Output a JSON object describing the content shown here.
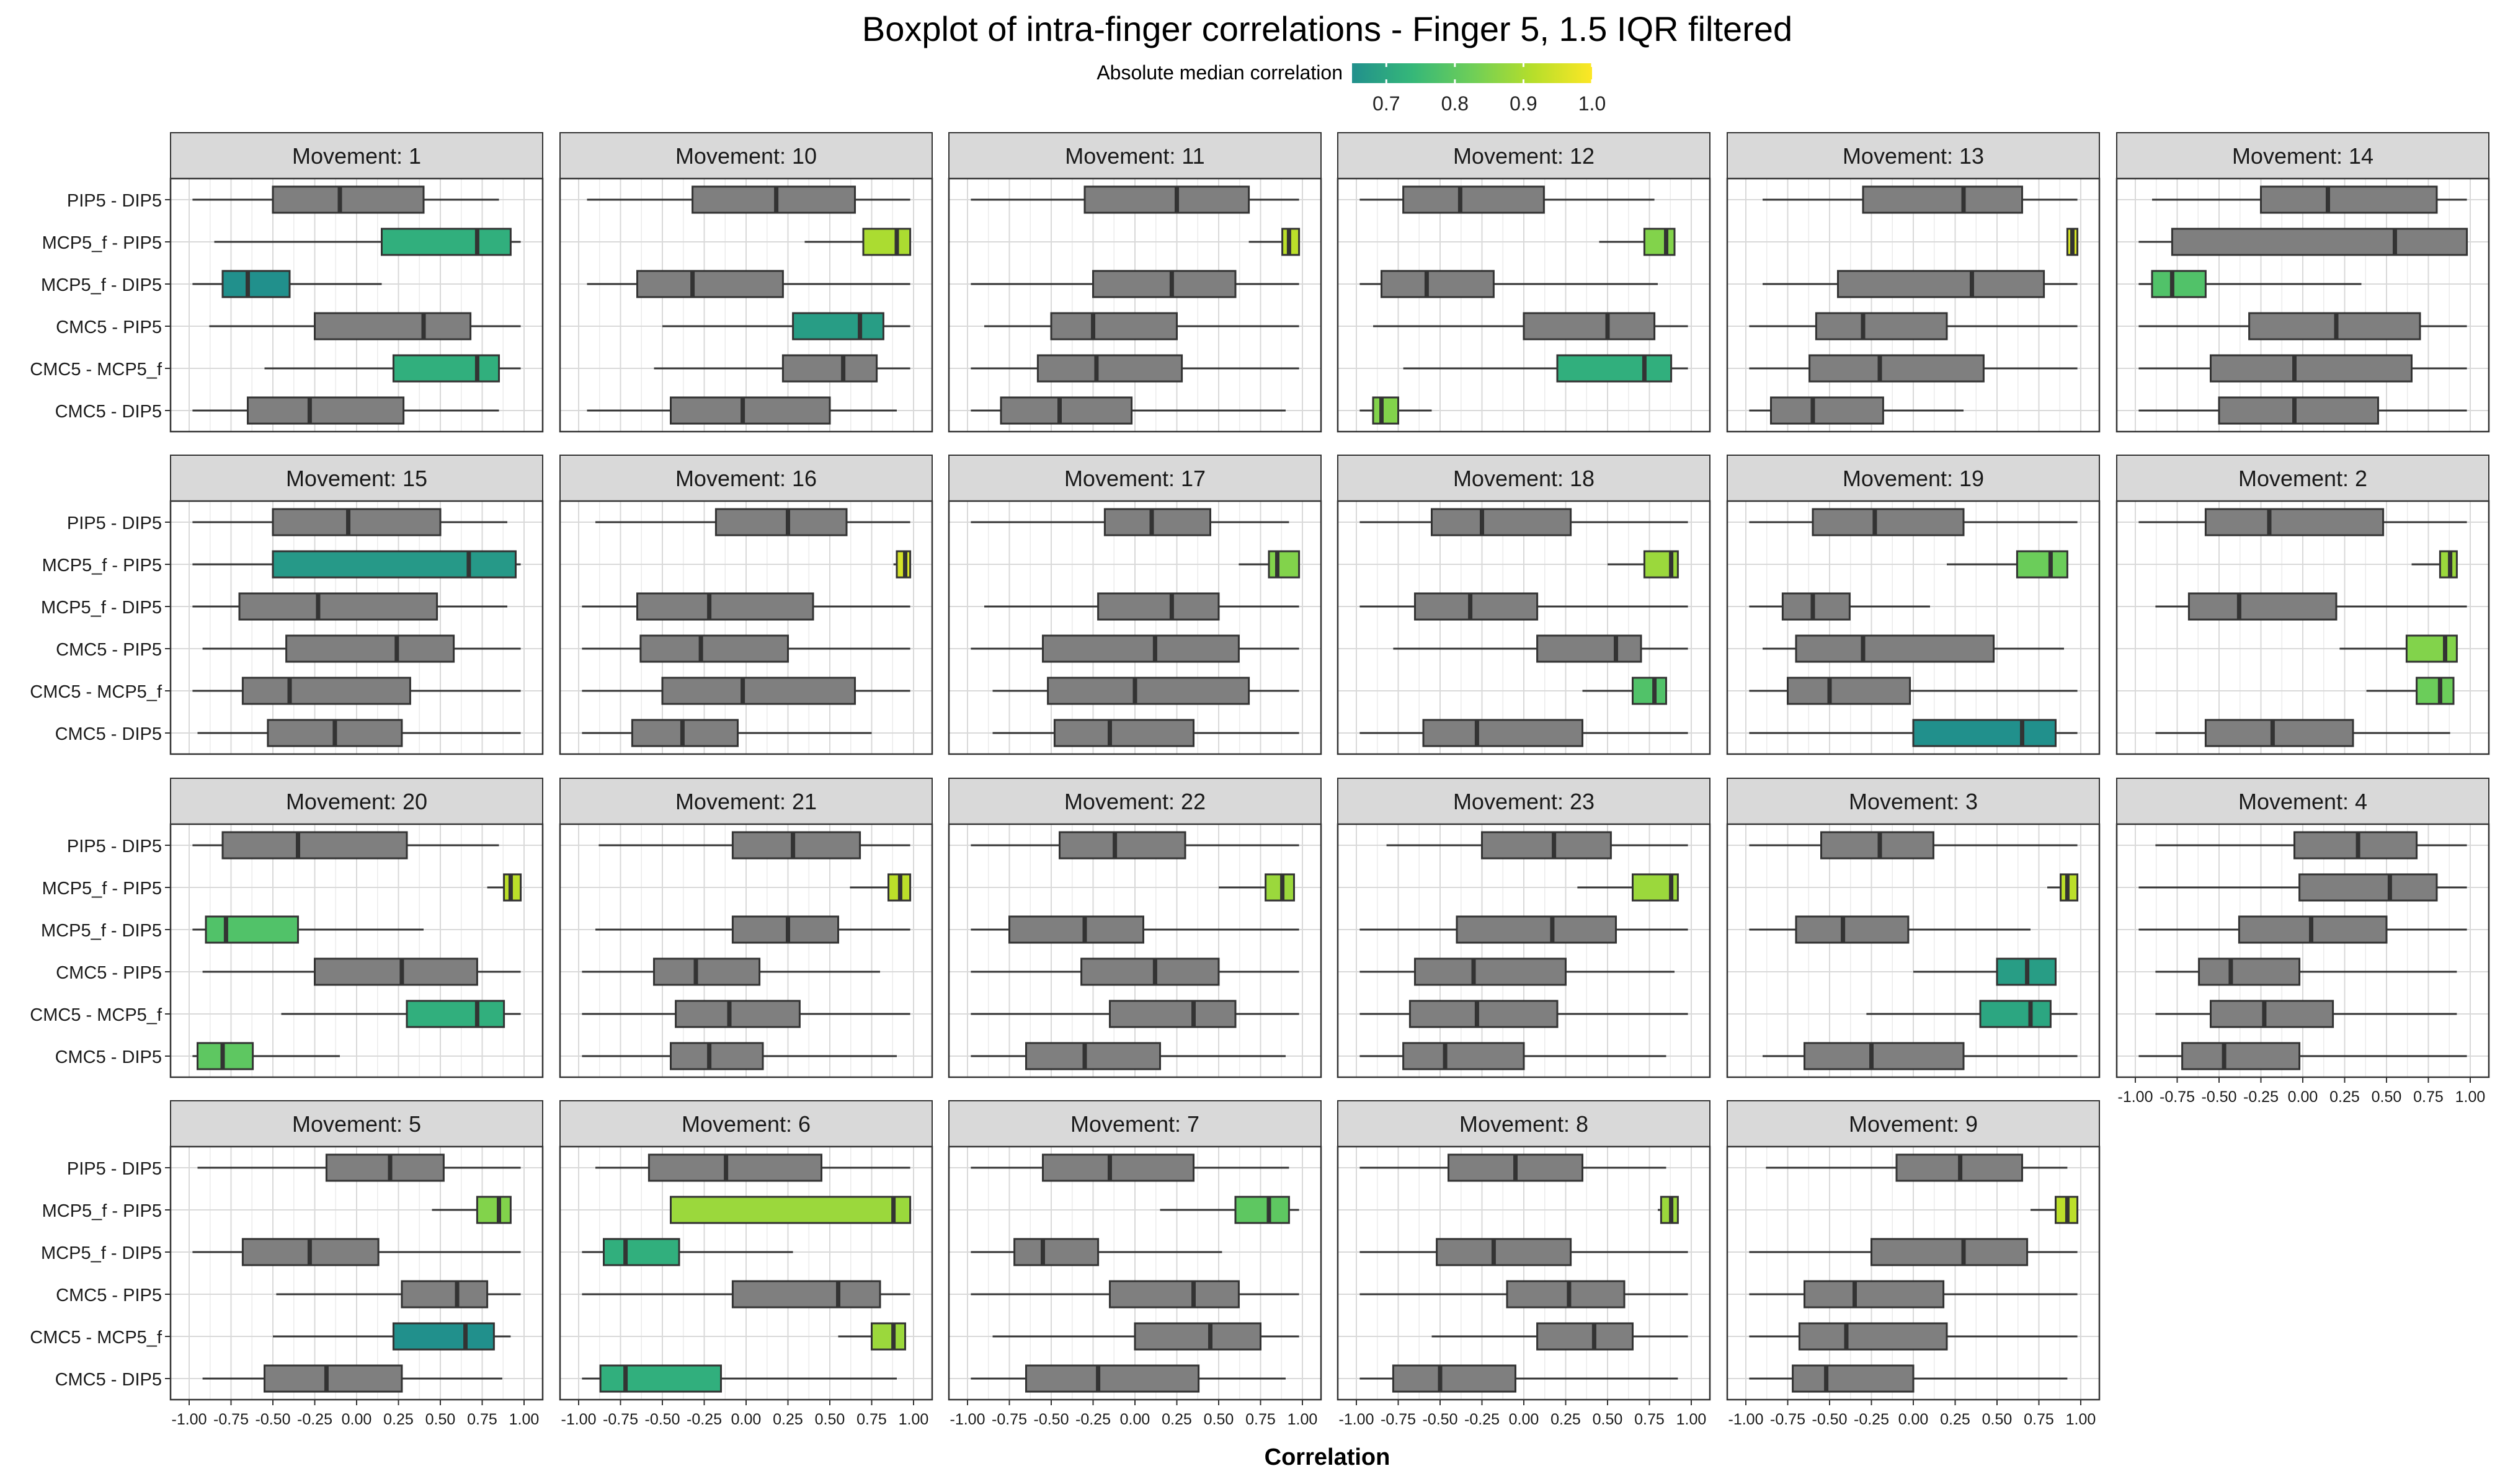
{
  "title": "Boxplot of intra-finger correlations - Finger 5, 1.5 IQR filtered",
  "legend": {
    "title": "Absolute median correlation",
    "ticks": [
      "0.7",
      "0.8",
      "0.9",
      "1.0"
    ],
    "tick_values": [
      0.7,
      0.8,
      0.9,
      1.0
    ],
    "range": [
      0.65,
      1.0
    ],
    "colors": [
      "#21908c",
      "#35b779",
      "#6ece58",
      "#b5de2b",
      "#fde725"
    ]
  },
  "colors": {
    "neutral_box": "#7f7f7f",
    "strip": "#d9d9d9",
    "grid": "#d9d9d9",
    "border": "#333333"
  },
  "chart_data": {
    "type": "boxplot",
    "orientation": "horizontal",
    "xlabel": "Correlation",
    "xlim": [
      -1.0,
      1.0
    ],
    "x_ticks": [
      -1.0,
      -0.75,
      -0.5,
      -0.25,
      0.0,
      0.25,
      0.5,
      0.75,
      1.0
    ],
    "x_tick_labels": [
      "-1.00",
      "-0.75",
      "-0.50",
      "-0.25",
      "0.00",
      "0.25",
      "0.50",
      "0.75",
      "1.00"
    ],
    "categories": [
      "PIP5 - DIP5",
      "MCP5_f - PIP5",
      "MCP5_f - DIP5",
      "CMC5 - PIP5",
      "CMC5 - MCP5_f",
      "CMC5 - DIP5"
    ],
    "box_fields": [
      "whisker_min",
      "q1",
      "median",
      "q3",
      "whisker_max"
    ],
    "colored_when_abs_median_at_least": 0.65,
    "facets": [
      {
        "label": "Movement: 1",
        "boxes": [
          [
            -0.98,
            -0.5,
            -0.1,
            0.4,
            0.85
          ],
          [
            -0.85,
            0.15,
            0.72,
            0.92,
            0.98
          ],
          [
            -0.98,
            -0.8,
            -0.65,
            -0.4,
            0.15
          ],
          [
            -0.88,
            -0.25,
            0.4,
            0.68,
            0.98
          ],
          [
            -0.55,
            0.22,
            0.72,
            0.85,
            0.98
          ],
          [
            -0.98,
            -0.65,
            -0.28,
            0.28,
            0.85
          ]
        ]
      },
      {
        "label": "Movement: 10",
        "boxes": [
          [
            -0.95,
            -0.32,
            0.18,
            0.65,
            0.98
          ],
          [
            0.35,
            0.7,
            0.9,
            0.98,
            0.98
          ],
          [
            -0.95,
            -0.65,
            -0.32,
            0.22,
            0.98
          ],
          [
            -0.5,
            0.28,
            0.68,
            0.82,
            0.98
          ],
          [
            -0.55,
            0.22,
            0.58,
            0.78,
            0.98
          ],
          [
            -0.95,
            -0.45,
            -0.02,
            0.5,
            0.9
          ]
        ]
      },
      {
        "label": "Movement: 11",
        "boxes": [
          [
            -0.98,
            -0.3,
            0.25,
            0.68,
            0.98
          ],
          [
            0.68,
            0.88,
            0.92,
            0.98,
            0.98
          ],
          [
            -0.98,
            -0.25,
            0.22,
            0.6,
            0.98
          ],
          [
            -0.9,
            -0.5,
            -0.25,
            0.25,
            0.98
          ],
          [
            -0.98,
            -0.58,
            -0.23,
            0.28,
            0.98
          ],
          [
            -0.98,
            -0.8,
            -0.45,
            -0.02,
            0.9
          ]
        ]
      },
      {
        "label": "Movement: 12",
        "boxes": [
          [
            -0.98,
            -0.72,
            -0.38,
            0.12,
            0.78
          ],
          [
            0.45,
            0.72,
            0.85,
            0.9,
            0.9
          ],
          [
            -0.98,
            -0.85,
            -0.58,
            -0.18,
            0.8
          ],
          [
            -0.9,
            0.0,
            0.5,
            0.78,
            0.98
          ],
          [
            -0.72,
            0.2,
            0.72,
            0.88,
            0.98
          ],
          [
            -0.98,
            -0.9,
            -0.85,
            -0.75,
            -0.55
          ]
        ]
      },
      {
        "label": "Movement: 13",
        "boxes": [
          [
            -0.9,
            -0.3,
            0.3,
            0.65,
            0.98
          ],
          [
            0.92,
            0.92,
            0.95,
            0.98,
            0.98
          ],
          [
            -0.9,
            -0.45,
            0.35,
            0.78,
            0.98
          ],
          [
            -0.98,
            -0.58,
            -0.3,
            0.2,
            0.98
          ],
          [
            -0.98,
            -0.62,
            -0.2,
            0.42,
            0.98
          ],
          [
            -0.98,
            -0.85,
            -0.6,
            -0.18,
            0.3
          ]
        ]
      },
      {
        "label": "Movement: 14",
        "boxes": [
          [
            -0.9,
            -0.25,
            0.15,
            0.8,
            0.98
          ],
          [
            -0.98,
            -0.78,
            0.55,
            0.98,
            0.98
          ],
          [
            -0.98,
            -0.9,
            -0.78,
            -0.58,
            0.35
          ],
          [
            -0.98,
            -0.32,
            0.2,
            0.7,
            0.98
          ],
          [
            -0.98,
            -0.55,
            -0.05,
            0.65,
            0.98
          ],
          [
            -0.98,
            -0.5,
            -0.05,
            0.45,
            0.98
          ]
        ]
      },
      {
        "label": "Movement: 15",
        "boxes": [
          [
            -0.98,
            -0.5,
            -0.05,
            0.5,
            0.9
          ],
          [
            -0.98,
            -0.5,
            0.67,
            0.95,
            0.98
          ],
          [
            -0.98,
            -0.7,
            -0.23,
            0.48,
            0.9
          ],
          [
            -0.92,
            -0.42,
            0.24,
            0.58,
            0.98
          ],
          [
            -0.98,
            -0.68,
            -0.4,
            0.32,
            0.98
          ],
          [
            -0.95,
            -0.53,
            -0.13,
            0.27,
            0.98
          ]
        ]
      },
      {
        "label": "Movement: 16",
        "boxes": [
          [
            -0.9,
            -0.18,
            0.25,
            0.6,
            0.98
          ],
          [
            0.88,
            0.9,
            0.95,
            0.98,
            0.98
          ],
          [
            -0.98,
            -0.65,
            -0.22,
            0.4,
            0.98
          ],
          [
            -0.98,
            -0.63,
            -0.27,
            0.25,
            0.98
          ],
          [
            -0.98,
            -0.5,
            -0.02,
            0.65,
            0.98
          ],
          [
            -0.98,
            -0.68,
            -0.38,
            -0.05,
            0.75
          ]
        ]
      },
      {
        "label": "Movement: 17",
        "boxes": [
          [
            -0.98,
            -0.18,
            0.1,
            0.45,
            0.92
          ],
          [
            0.62,
            0.8,
            0.85,
            0.98,
            0.98
          ],
          [
            -0.9,
            -0.22,
            0.22,
            0.5,
            0.98
          ],
          [
            -0.98,
            -0.55,
            0.12,
            0.62,
            0.98
          ],
          [
            -0.85,
            -0.52,
            0.0,
            0.68,
            0.98
          ],
          [
            -0.85,
            -0.48,
            -0.15,
            0.35,
            0.98
          ]
        ]
      },
      {
        "label": "Movement: 18",
        "boxes": [
          [
            -0.98,
            -0.55,
            -0.25,
            0.28,
            0.98
          ],
          [
            0.5,
            0.72,
            0.88,
            0.92,
            0.92
          ],
          [
            -0.98,
            -0.65,
            -0.32,
            0.08,
            0.98
          ],
          [
            -0.78,
            0.08,
            0.55,
            0.7,
            0.98
          ],
          [
            0.35,
            0.65,
            0.78,
            0.85,
            0.85
          ],
          [
            -0.98,
            -0.6,
            -0.28,
            0.35,
            0.98
          ]
        ]
      },
      {
        "label": "Movement: 19",
        "boxes": [
          [
            -0.98,
            -0.6,
            -0.23,
            0.3,
            0.98
          ],
          [
            0.2,
            0.62,
            0.82,
            0.92,
            0.92
          ],
          [
            -0.98,
            -0.78,
            -0.6,
            -0.38,
            0.1
          ],
          [
            -0.9,
            -0.7,
            -0.3,
            0.48,
            0.9
          ],
          [
            -0.98,
            -0.75,
            -0.5,
            -0.02,
            0.98
          ],
          [
            -0.98,
            0.0,
            0.65,
            0.85,
            0.98
          ]
        ]
      },
      {
        "label": "Movement: 2",
        "boxes": [
          [
            -0.98,
            -0.58,
            -0.2,
            0.48,
            0.98
          ],
          [
            0.65,
            0.82,
            0.88,
            0.92,
            0.92
          ],
          [
            -0.88,
            -0.68,
            -0.38,
            0.2,
            0.98
          ],
          [
            0.22,
            0.62,
            0.85,
            0.92,
            0.92
          ],
          [
            0.38,
            0.68,
            0.82,
            0.9,
            0.9
          ],
          [
            -0.88,
            -0.58,
            -0.18,
            0.3,
            0.88
          ]
        ]
      },
      {
        "label": "Movement: 20",
        "boxes": [
          [
            -0.98,
            -0.8,
            -0.35,
            0.3,
            0.85
          ],
          [
            0.78,
            0.88,
            0.92,
            0.98,
            0.98
          ],
          [
            -0.98,
            -0.9,
            -0.78,
            -0.35,
            0.4
          ],
          [
            -0.92,
            -0.25,
            0.27,
            0.72,
            0.98
          ],
          [
            -0.45,
            0.3,
            0.72,
            0.88,
            0.98
          ],
          [
            -0.98,
            -0.95,
            -0.8,
            -0.62,
            -0.1
          ]
        ]
      },
      {
        "label": "Movement: 21",
        "boxes": [
          [
            -0.88,
            -0.08,
            0.28,
            0.68,
            0.98
          ],
          [
            0.62,
            0.85,
            0.92,
            0.98,
            0.98
          ],
          [
            -0.9,
            -0.08,
            0.25,
            0.55,
            0.98
          ],
          [
            -0.98,
            -0.55,
            -0.3,
            0.08,
            0.8
          ],
          [
            -0.98,
            -0.42,
            -0.1,
            0.32,
            0.98
          ],
          [
            -0.98,
            -0.45,
            -0.22,
            0.1,
            0.9
          ]
        ]
      },
      {
        "label": "Movement: 22",
        "boxes": [
          [
            -0.98,
            -0.45,
            -0.12,
            0.3,
            0.98
          ],
          [
            0.5,
            0.78,
            0.88,
            0.95,
            0.95
          ],
          [
            -0.98,
            -0.75,
            -0.3,
            0.05,
            0.98
          ],
          [
            -0.98,
            -0.32,
            0.12,
            0.5,
            0.98
          ],
          [
            -0.98,
            -0.15,
            0.35,
            0.6,
            0.98
          ],
          [
            -0.98,
            -0.65,
            -0.3,
            0.15,
            0.9
          ]
        ]
      },
      {
        "label": "Movement: 23",
        "boxes": [
          [
            -0.82,
            -0.25,
            0.18,
            0.52,
            0.98
          ],
          [
            0.32,
            0.65,
            0.88,
            0.92,
            0.92
          ],
          [
            -0.98,
            -0.4,
            0.17,
            0.55,
            0.98
          ],
          [
            -0.98,
            -0.65,
            -0.3,
            0.25,
            0.9
          ],
          [
            -0.98,
            -0.68,
            -0.28,
            0.2,
            0.98
          ],
          [
            -0.98,
            -0.72,
            -0.47,
            0.0,
            0.85
          ]
        ]
      },
      {
        "label": "Movement: 3",
        "boxes": [
          [
            -0.98,
            -0.55,
            -0.2,
            0.12,
            0.98
          ],
          [
            0.8,
            0.88,
            0.92,
            0.98,
            0.98
          ],
          [
            -0.98,
            -0.7,
            -0.42,
            -0.03,
            0.7
          ],
          [
            0.0,
            0.5,
            0.68,
            0.85,
            0.85
          ],
          [
            -0.28,
            0.4,
            0.7,
            0.82,
            0.98
          ],
          [
            -0.9,
            -0.65,
            -0.25,
            0.3,
            0.98
          ]
        ]
      },
      {
        "label": "Movement: 4",
        "boxes": [
          [
            -0.88,
            -0.05,
            0.33,
            0.68,
            0.98
          ],
          [
            -0.98,
            -0.02,
            0.52,
            0.8,
            0.98
          ],
          [
            -0.98,
            -0.38,
            0.05,
            0.5,
            0.98
          ],
          [
            -0.88,
            -0.62,
            -0.43,
            -0.02,
            0.92
          ],
          [
            -0.88,
            -0.55,
            -0.23,
            0.18,
            0.92
          ],
          [
            -0.98,
            -0.72,
            -0.47,
            -0.02,
            0.98
          ]
        ]
      },
      {
        "label": "Movement: 5",
        "boxes": [
          [
            -0.95,
            -0.18,
            0.2,
            0.52,
            0.98
          ],
          [
            0.45,
            0.72,
            0.85,
            0.92,
            0.92
          ],
          [
            -0.98,
            -0.68,
            -0.28,
            0.13,
            0.98
          ],
          [
            -0.48,
            0.27,
            0.6,
            0.78,
            0.98
          ],
          [
            -0.5,
            0.22,
            0.65,
            0.82,
            0.92
          ],
          [
            -0.92,
            -0.55,
            -0.18,
            0.27,
            0.87
          ]
        ]
      },
      {
        "label": "Movement: 6",
        "boxes": [
          [
            -0.9,
            -0.58,
            -0.12,
            0.45,
            0.98
          ],
          [
            -0.45,
            -0.45,
            0.88,
            0.98,
            0.98
          ],
          [
            -0.98,
            -0.85,
            -0.72,
            -0.4,
            0.28
          ],
          [
            -0.98,
            -0.08,
            0.55,
            0.8,
            0.98
          ],
          [
            0.55,
            0.75,
            0.88,
            0.95,
            0.95
          ],
          [
            -0.98,
            -0.87,
            -0.72,
            -0.15,
            0.9
          ]
        ]
      },
      {
        "label": "Movement: 7",
        "boxes": [
          [
            -0.98,
            -0.55,
            -0.15,
            0.35,
            0.92
          ],
          [
            0.15,
            0.6,
            0.8,
            0.92,
            0.98
          ],
          [
            -0.98,
            -0.72,
            -0.55,
            -0.22,
            0.52
          ],
          [
            -0.98,
            -0.15,
            0.35,
            0.62,
            0.98
          ],
          [
            -0.85,
            0.0,
            0.45,
            0.75,
            0.98
          ],
          [
            -0.98,
            -0.65,
            -0.22,
            0.38,
            0.9
          ]
        ]
      },
      {
        "label": "Movement: 8",
        "boxes": [
          [
            -0.98,
            -0.45,
            -0.05,
            0.35,
            0.85
          ],
          [
            0.8,
            0.82,
            0.88,
            0.92,
            0.92
          ],
          [
            -0.98,
            -0.52,
            -0.18,
            0.28,
            0.98
          ],
          [
            -0.98,
            -0.1,
            0.27,
            0.6,
            0.98
          ],
          [
            -0.55,
            0.08,
            0.42,
            0.65,
            0.98
          ],
          [
            -0.98,
            -0.78,
            -0.5,
            -0.05,
            0.92
          ]
        ]
      },
      {
        "label": "Movement: 9",
        "boxes": [
          [
            -0.88,
            -0.1,
            0.28,
            0.65,
            0.92
          ],
          [
            0.7,
            0.85,
            0.92,
            0.98,
            0.98
          ],
          [
            -0.98,
            -0.25,
            0.3,
            0.68,
            0.98
          ],
          [
            -0.98,
            -0.65,
            -0.35,
            0.18,
            0.98
          ],
          [
            -0.98,
            -0.68,
            -0.4,
            0.2,
            0.98
          ],
          [
            -0.98,
            -0.72,
            -0.52,
            0.0,
            0.92
          ]
        ]
      }
    ]
  }
}
